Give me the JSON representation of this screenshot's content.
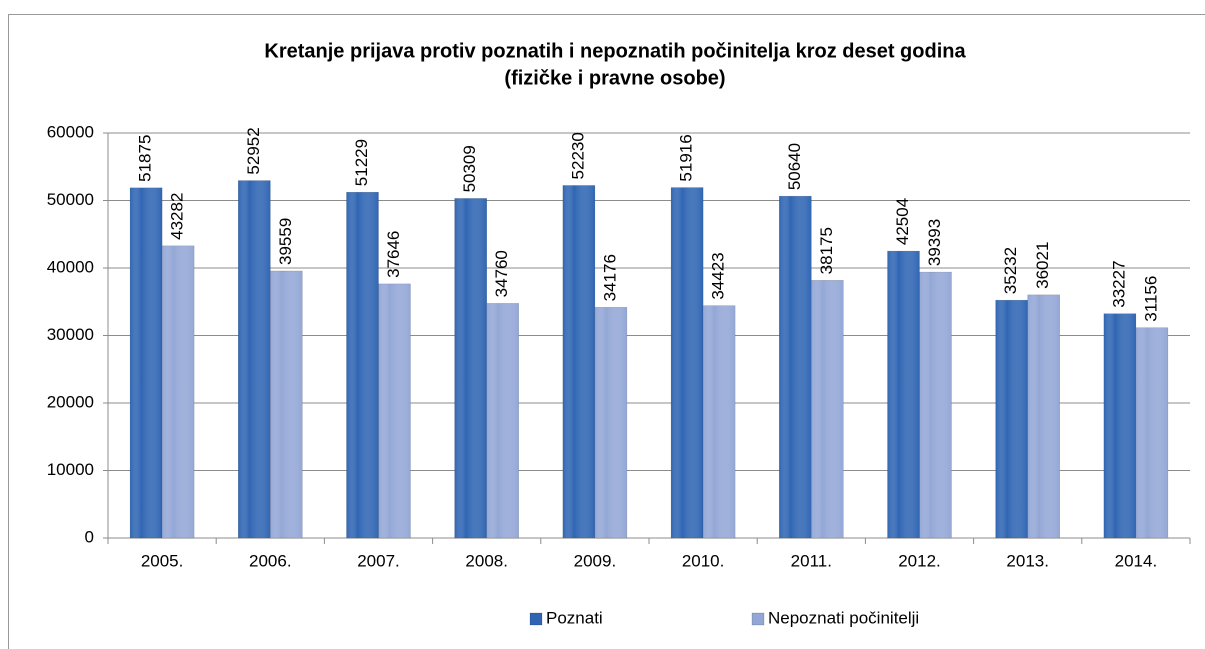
{
  "chart_data": {
    "type": "bar",
    "title": [
      "Kretanje prijava protiv poznatih i nepoznatih počinitelja kroz deset godina",
      "(fizičke i pravne osobe)"
    ],
    "categories": [
      "2005.",
      "2006.",
      "2007.",
      "2008.",
      "2009.",
      "2010.",
      "2011.",
      "2012.",
      "2013.",
      "2014."
    ],
    "series": [
      {
        "name": "Poznati",
        "color": "#2f65b3",
        "values": [
          51875,
          52952,
          51229,
          50309,
          52230,
          51916,
          50640,
          42504,
          35232,
          33227
        ]
      },
      {
        "name": "Nepoznati počinitelji",
        "color": "#93a7d6",
        "values": [
          43282,
          39559,
          37646,
          34760,
          34176,
          34423,
          38175,
          39393,
          36021,
          31156
        ]
      }
    ],
    "ylim": [
      0,
      60000
    ],
    "yticks": [
      0,
      10000,
      20000,
      30000,
      40000,
      50000,
      60000
    ],
    "grid": true,
    "legend": "bottom"
  }
}
